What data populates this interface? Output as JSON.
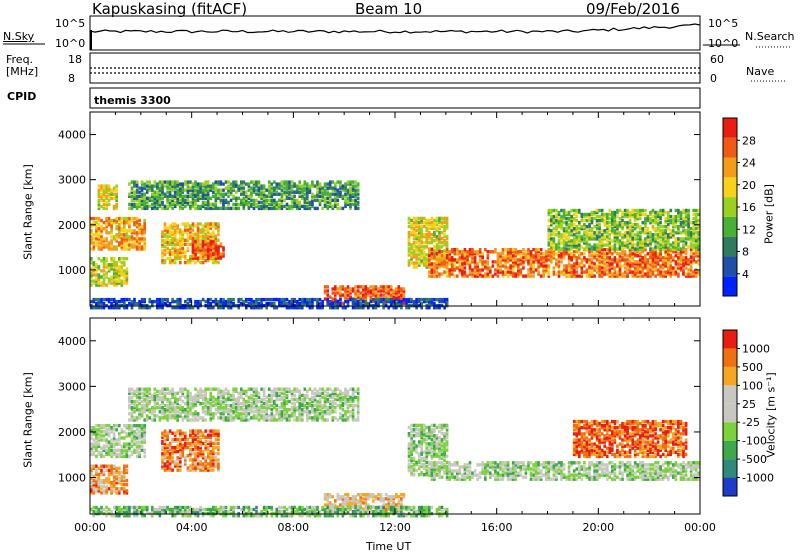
{
  "header": {
    "radar": "Kapuskasing (fitACF)",
    "beam": "Beam 10",
    "date": "09/Feb/2016"
  },
  "panels": {
    "nsky_label": "N.Sky",
    "nsearch_label": "N.Search",
    "left_ticks_top": "10^5",
    "left_ticks_bottom": "10^0",
    "right_ticks_top": "10^5",
    "right_ticks_bottom": "10^0",
    "freq_label_1": "Freq.",
    "freq_label_2": "[MHz]",
    "freq_tick_top": "18",
    "freq_tick_bottom": "8",
    "nave_tick_top": "60",
    "nave_tick_bottom": "0",
    "nave_label": "Nave",
    "cpid_label": "CPID",
    "cpid_value": "themis 3300"
  },
  "chart_data": [
    {
      "type": "heatmap",
      "name": "power",
      "ylabel": "Slant Range [km]",
      "yticks": [
        "4000",
        "3000",
        "2000",
        "1000"
      ],
      "ylim": [
        200,
        4500
      ],
      "xlim_hours": [
        0,
        24
      ],
      "colorbar": {
        "label": "Power [dB]",
        "ticks": [
          "28",
          "24",
          "20",
          "16",
          "12",
          "8",
          "4"
        ],
        "colors": [
          "#0022ff",
          "#1f4fa8",
          "#2e7b5f",
          "#47b035",
          "#9ad11f",
          "#f7d21a",
          "#f59b1a",
          "#f05a14",
          "#e81e10"
        ]
      },
      "features": [
        {
          "t0": 0.0,
          "t1": 2.2,
          "r0": 1500,
          "r1": 2200,
          "level": 0.7
        },
        {
          "t0": 0.0,
          "t1": 1.5,
          "r0": 700,
          "r1": 1300,
          "level": 0.55
        },
        {
          "t0": 0.3,
          "t1": 1.0,
          "r0": 2400,
          "r1": 2900,
          "level": 0.6
        },
        {
          "t0": 2.8,
          "t1": 5.0,
          "r0": 1200,
          "r1": 2100,
          "level": 0.65
        },
        {
          "t0": 4.0,
          "t1": 5.2,
          "r0": 1300,
          "r1": 1700,
          "level": 0.9
        },
        {
          "t0": 1.5,
          "t1": 10.5,
          "r0": 2400,
          "r1": 3000,
          "level": 0.35
        },
        {
          "t0": 9.2,
          "t1": 12.3,
          "r0": 300,
          "r1": 700,
          "level": 0.85
        },
        {
          "t0": 12.5,
          "t1": 14.0,
          "r0": 1100,
          "r1": 2200,
          "level": 0.6
        },
        {
          "t0": 13.3,
          "t1": 24.0,
          "r0": 900,
          "r1": 1500,
          "level": 0.8
        },
        {
          "t0": 18.0,
          "t1": 24.0,
          "r0": 1500,
          "r1": 2400,
          "level": 0.45
        },
        {
          "t0": 0.0,
          "t1": 14.0,
          "r0": 200,
          "r1": 400,
          "level": 0.15
        }
      ]
    },
    {
      "type": "heatmap",
      "name": "velocity",
      "ylabel": "Slant Range [km]",
      "yticks": [
        "4000",
        "3000",
        "2000",
        "1000"
      ],
      "ylim": [
        200,
        4500
      ],
      "xlim_hours": [
        0,
        24
      ],
      "xticks": [
        "00:00",
        "04:00",
        "08:00",
        "12:00",
        "16:00",
        "20:00",
        "00:00"
      ],
      "xlabel": "Time UT",
      "colorbar": {
        "label": "Velocity [m s⁻¹]",
        "ticks": [
          "1000",
          "500",
          "100",
          "25",
          "-25",
          "-100",
          "-500",
          "-1000"
        ],
        "colors": [
          "#1f3cc8",
          "#2f8a7a",
          "#3ea84a",
          "#7bd23a",
          "#c8c8c0",
          "#c8c8c0",
          "#f5a623",
          "#f07010",
          "#e81e10"
        ]
      },
      "features": [
        {
          "t0": 0.0,
          "t1": 2.2,
          "r0": 1500,
          "r1": 2200,
          "level": 0.45
        },
        {
          "t0": 1.5,
          "t1": 10.5,
          "r0": 2300,
          "r1": 3000,
          "level": 0.45
        },
        {
          "t0": 2.8,
          "t1": 5.0,
          "r0": 1200,
          "r1": 2100,
          "level": 0.8
        },
        {
          "t0": 0.0,
          "t1": 1.5,
          "r0": 700,
          "r1": 1300,
          "level": 0.75
        },
        {
          "t0": 9.2,
          "t1": 12.3,
          "r0": 300,
          "r1": 700,
          "level": 0.65
        },
        {
          "t0": 12.5,
          "t1": 14.0,
          "r0": 1100,
          "r1": 2200,
          "level": 0.45
        },
        {
          "t0": 13.3,
          "t1": 24.0,
          "r0": 1000,
          "r1": 1400,
          "level": 0.45
        },
        {
          "t0": 19.0,
          "t1": 23.5,
          "r0": 1500,
          "r1": 2300,
          "level": 0.85
        },
        {
          "t0": 0.0,
          "t1": 14.0,
          "r0": 200,
          "r1": 400,
          "level": 0.35
        }
      ]
    }
  ]
}
